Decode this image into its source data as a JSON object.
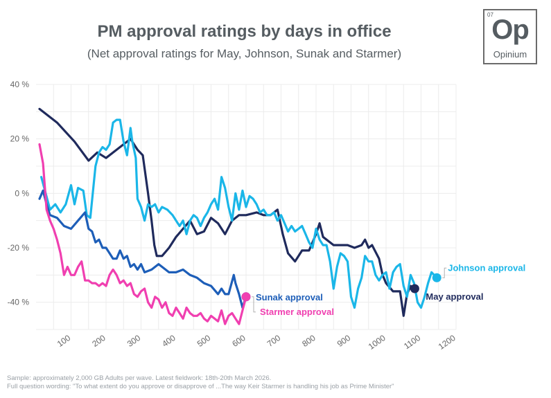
{
  "header": {
    "title": "PM approval ratings by days in office",
    "subtitle": "(Net approval ratings for May, Johnson, Sunak and Starmer)"
  },
  "logo": {
    "number": "07",
    "symbol": "Op",
    "name": "Opinium"
  },
  "footer": {
    "line1": "Sample: approximately 2,000 GB Adults per wave. Latest fieldwork: 18th-20th March 2026.",
    "line2": "Full question wording: \"To what extent do you approve or disapprove of ...The way Keir Starmer is handling his job as Prime Minister\""
  },
  "chart_data": {
    "type": "line",
    "title": "PM approval ratings by days in office",
    "subtitle": "(Net approval ratings for May, Johnson, Sunak and Starmer)",
    "xlabel": "",
    "ylabel": "",
    "xlim": [
      0,
      1200
    ],
    "ylim": [
      -50,
      40
    ],
    "x_ticks": [
      "100",
      "200",
      "300",
      "400",
      "500",
      "600",
      "700",
      "800",
      "900",
      "1000",
      "1100",
      "1200"
    ],
    "x_tick_values": [
      100,
      200,
      300,
      400,
      500,
      600,
      700,
      800,
      900,
      1000,
      1100,
      1200
    ],
    "y_ticks": [
      "40 %",
      "20 %",
      "0 %",
      "-20 %",
      "-40 %"
    ],
    "y_tick_values": [
      40,
      20,
      0,
      -20,
      -40
    ],
    "grid": true,
    "series": [
      {
        "name": "May approval",
        "label": "May approval",
        "color": "#1f2a5c",
        "points": [
          [
            10,
            31
          ],
          [
            60,
            26
          ],
          [
            110,
            19
          ],
          [
            150,
            12
          ],
          [
            175,
            15
          ],
          [
            200,
            13
          ],
          [
            230,
            16
          ],
          [
            250,
            18
          ],
          [
            270,
            20
          ],
          [
            290,
            16
          ],
          [
            305,
            14
          ],
          [
            320,
            0
          ],
          [
            330,
            -10
          ],
          [
            338,
            -19
          ],
          [
            345,
            -23
          ],
          [
            360,
            -23
          ],
          [
            380,
            -20
          ],
          [
            400,
            -16
          ],
          [
            420,
            -13
          ],
          [
            440,
            -10
          ],
          [
            460,
            -15
          ],
          [
            480,
            -14
          ],
          [
            500,
            -9
          ],
          [
            520,
            -11
          ],
          [
            540,
            -15
          ],
          [
            560,
            -10
          ],
          [
            580,
            -8
          ],
          [
            600,
            -8
          ],
          [
            630,
            -7
          ],
          [
            650,
            -8
          ],
          [
            670,
            -8
          ],
          [
            690,
            -6
          ],
          [
            705,
            -15
          ],
          [
            720,
            -22
          ],
          [
            740,
            -25
          ],
          [
            760,
            -21
          ],
          [
            780,
            -21
          ],
          [
            800,
            -15
          ],
          [
            810,
            -11
          ],
          [
            820,
            -16
          ],
          [
            850,
            -19
          ],
          [
            870,
            -19
          ],
          [
            890,
            -19
          ],
          [
            910,
            -20
          ],
          [
            930,
            -19
          ],
          [
            940,
            -17
          ],
          [
            950,
            -20
          ],
          [
            960,
            -19
          ],
          [
            980,
            -24
          ],
          [
            990,
            -30
          ],
          [
            1000,
            -33
          ],
          [
            1020,
            -36
          ],
          [
            1040,
            -36
          ],
          [
            1050,
            -45
          ],
          [
            1060,
            -37
          ],
          [
            1070,
            -34
          ],
          [
            1082,
            -35
          ]
        ]
      },
      {
        "name": "Johnson approval",
        "label": "Johnson approval",
        "color": "#1ab6e8",
        "points": [
          [
            15,
            6
          ],
          [
            40,
            -6
          ],
          [
            55,
            -4
          ],
          [
            70,
            -7
          ],
          [
            85,
            -4
          ],
          [
            100,
            3
          ],
          [
            110,
            -4
          ],
          [
            120,
            2
          ],
          [
            135,
            1
          ],
          [
            145,
            -8
          ],
          [
            155,
            -9
          ],
          [
            170,
            10
          ],
          [
            180,
            15
          ],
          [
            190,
            17
          ],
          [
            200,
            16
          ],
          [
            210,
            18
          ],
          [
            220,
            26
          ],
          [
            230,
            27
          ],
          [
            240,
            27
          ],
          [
            250,
            19
          ],
          [
            260,
            14
          ],
          [
            270,
            24
          ],
          [
            275,
            19
          ],
          [
            285,
            13
          ],
          [
            290,
            -2
          ],
          [
            300,
            -5
          ],
          [
            310,
            -10
          ],
          [
            320,
            -4
          ],
          [
            330,
            -5
          ],
          [
            340,
            -4
          ],
          [
            350,
            -7
          ],
          [
            360,
            -5
          ],
          [
            375,
            -6
          ],
          [
            390,
            -8
          ],
          [
            400,
            -10
          ],
          [
            410,
            -12
          ],
          [
            420,
            -10
          ],
          [
            430,
            -15
          ],
          [
            440,
            -10
          ],
          [
            450,
            -8
          ],
          [
            460,
            -9
          ],
          [
            470,
            -12
          ],
          [
            480,
            -9
          ],
          [
            490,
            -7
          ],
          [
            500,
            -4
          ],
          [
            510,
            -2
          ],
          [
            520,
            -6
          ],
          [
            530,
            6
          ],
          [
            540,
            2
          ],
          [
            550,
            -5
          ],
          [
            560,
            -10
          ],
          [
            570,
            0
          ],
          [
            580,
            -6
          ],
          [
            590,
            1
          ],
          [
            600,
            -5
          ],
          [
            610,
            -1
          ],
          [
            620,
            -2
          ],
          [
            630,
            -4
          ],
          [
            640,
            -7
          ],
          [
            650,
            -6
          ],
          [
            660,
            -8
          ],
          [
            670,
            -8
          ],
          [
            680,
            -7
          ],
          [
            690,
            -10
          ],
          [
            700,
            -8
          ],
          [
            710,
            -11
          ],
          [
            720,
            -14
          ],
          [
            730,
            -12
          ],
          [
            740,
            -14
          ],
          [
            750,
            -13
          ],
          [
            760,
            -12
          ],
          [
            770,
            -15
          ],
          [
            780,
            -18
          ],
          [
            790,
            -20
          ],
          [
            800,
            -13
          ],
          [
            810,
            -17
          ],
          [
            820,
            -19
          ],
          [
            830,
            -19
          ],
          [
            840,
            -25
          ],
          [
            850,
            -35
          ],
          [
            860,
            -27
          ],
          [
            870,
            -22
          ],
          [
            880,
            -23
          ],
          [
            890,
            -25
          ],
          [
            900,
            -38
          ],
          [
            910,
            -42
          ],
          [
            920,
            -35
          ],
          [
            930,
            -31
          ],
          [
            940,
            -23
          ],
          [
            950,
            -25
          ],
          [
            960,
            -25
          ],
          [
            970,
            -30
          ],
          [
            980,
            -32
          ],
          [
            990,
            -30
          ],
          [
            1000,
            -29
          ],
          [
            1010,
            -35
          ],
          [
            1020,
            -29
          ],
          [
            1030,
            -27
          ],
          [
            1040,
            -26
          ],
          [
            1050,
            -34
          ],
          [
            1060,
            -38
          ],
          [
            1070,
            -30
          ],
          [
            1080,
            -33
          ],
          [
            1090,
            -40
          ],
          [
            1100,
            -42
          ],
          [
            1110,
            -38
          ],
          [
            1120,
            -33
          ],
          [
            1130,
            -29
          ],
          [
            1145,
            -31
          ]
        ]
      },
      {
        "name": "Sunak approval",
        "label": "Sunak approval",
        "color": "#1d5eb8",
        "points": [
          [
            10,
            -2
          ],
          [
            20,
            1
          ],
          [
            30,
            -4
          ],
          [
            40,
            -8
          ],
          [
            60,
            -9
          ],
          [
            80,
            -12
          ],
          [
            100,
            -13
          ],
          [
            120,
            -10
          ],
          [
            140,
            -7
          ],
          [
            150,
            -13
          ],
          [
            160,
            -14
          ],
          [
            170,
            -18
          ],
          [
            180,
            -17
          ],
          [
            190,
            -20
          ],
          [
            200,
            -20
          ],
          [
            210,
            -22
          ],
          [
            220,
            -24
          ],
          [
            230,
            -24
          ],
          [
            240,
            -21
          ],
          [
            250,
            -24
          ],
          [
            260,
            -23
          ],
          [
            270,
            -27
          ],
          [
            280,
            -26
          ],
          [
            290,
            -28
          ],
          [
            300,
            -26
          ],
          [
            310,
            -29
          ],
          [
            330,
            -28
          ],
          [
            350,
            -26
          ],
          [
            360,
            -27
          ],
          [
            380,
            -29
          ],
          [
            400,
            -29
          ],
          [
            420,
            -28
          ],
          [
            440,
            -30
          ],
          [
            460,
            -31
          ],
          [
            480,
            -33
          ],
          [
            500,
            -34
          ],
          [
            520,
            -37
          ],
          [
            530,
            -35
          ],
          [
            540,
            -37
          ],
          [
            550,
            -37
          ],
          [
            565,
            -30
          ],
          [
            570,
            -33
          ],
          [
            580,
            -37
          ],
          [
            590,
            -42
          ],
          [
            600,
            -38
          ]
        ]
      },
      {
        "name": "Starmer approval",
        "label": "Starmer approval",
        "color": "#f03fb0",
        "points": [
          [
            10,
            18
          ],
          [
            20,
            11
          ],
          [
            30,
            -6
          ],
          [
            40,
            -10
          ],
          [
            50,
            -13
          ],
          [
            60,
            -17
          ],
          [
            70,
            -22
          ],
          [
            80,
            -30
          ],
          [
            90,
            -27
          ],
          [
            100,
            -30
          ],
          [
            110,
            -30
          ],
          [
            120,
            -27
          ],
          [
            130,
            -25
          ],
          [
            140,
            -32
          ],
          [
            150,
            -32
          ],
          [
            160,
            -33
          ],
          [
            170,
            -33
          ],
          [
            180,
            -34
          ],
          [
            190,
            -33
          ],
          [
            200,
            -34
          ],
          [
            210,
            -30
          ],
          [
            220,
            -28
          ],
          [
            230,
            -30
          ],
          [
            240,
            -33
          ],
          [
            250,
            -32
          ],
          [
            260,
            -34
          ],
          [
            270,
            -33
          ],
          [
            280,
            -37
          ],
          [
            290,
            -38
          ],
          [
            300,
            -36
          ],
          [
            310,
            -35
          ],
          [
            320,
            -40
          ],
          [
            330,
            -42
          ],
          [
            340,
            -38
          ],
          [
            350,
            -39
          ],
          [
            360,
            -42
          ],
          [
            370,
            -40
          ],
          [
            380,
            -44
          ],
          [
            390,
            -45
          ],
          [
            400,
            -42
          ],
          [
            410,
            -44
          ],
          [
            420,
            -46
          ],
          [
            430,
            -42
          ],
          [
            440,
            -44
          ],
          [
            450,
            -45
          ],
          [
            460,
            -45
          ],
          [
            470,
            -44
          ],
          [
            480,
            -46
          ],
          [
            490,
            -47
          ],
          [
            500,
            -45
          ],
          [
            510,
            -46
          ],
          [
            520,
            -47
          ],
          [
            530,
            -43
          ],
          [
            540,
            -48
          ],
          [
            550,
            -45
          ],
          [
            560,
            -44
          ],
          [
            570,
            -46
          ],
          [
            580,
            -48
          ],
          [
            590,
            -43
          ],
          [
            600,
            -38
          ]
        ]
      }
    ]
  }
}
